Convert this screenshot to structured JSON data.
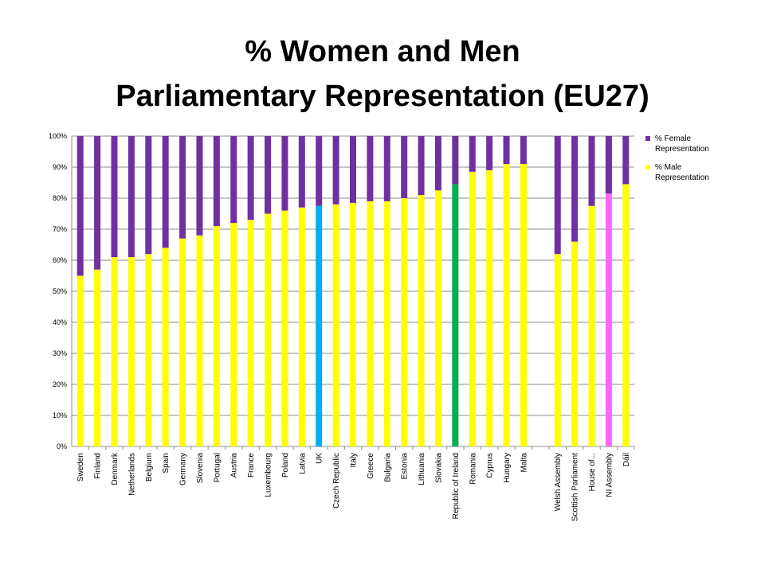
{
  "title": {
    "line1": "% Women and Men",
    "line2": "Parliamentary Representation (EU27)"
  },
  "colors": {
    "female": "#7030A0",
    "male": "#FFFF00",
    "uk": "#00B0F0",
    "ireland": "#00B050",
    "ni": "#FF66FF"
  },
  "chart_data": {
    "type": "bar",
    "stacked": true,
    "percent_stacked": true,
    "categories": [
      "Sweden",
      "Finland",
      "Denmark",
      "Netherlands",
      "Belgium",
      "Spain",
      "Germany",
      "Slovenia",
      "Portugal",
      "Austria",
      "France",
      "Luxembourg",
      "Poland",
      "Latvia",
      "UK",
      "Czech Republic",
      "Italy",
      "Greece",
      "Bulgaria",
      "Estonia",
      "Lithuania",
      "Slovakia",
      "Republic of Ireland",
      "Romania",
      "Cyprus",
      "Hungary",
      "Malta",
      "",
      "Welsh Assembly",
      "Scottish Parliament",
      "House of...",
      "NI Assembly",
      "Dáil"
    ],
    "series": [
      {
        "name": "% Female Representation",
        "values": [
          45,
          43,
          39,
          39,
          38,
          36,
          33,
          32,
          29,
          28,
          27,
          25,
          24,
          23,
          22.5,
          22,
          21.5,
          21,
          21,
          20,
          19,
          17.5,
          15.5,
          11.5,
          11,
          9,
          9,
          null,
          38,
          34,
          22.5,
          18.5,
          15.5
        ]
      },
      {
        "name": "% Male Representation",
        "values": [
          55,
          57,
          61,
          61,
          62,
          64,
          67,
          68,
          71,
          72,
          73,
          75,
          76,
          77,
          77.5,
          78,
          78.5,
          79,
          79,
          80,
          81,
          82.5,
          84.5,
          88.5,
          89,
          91,
          91,
          null,
          62,
          66,
          77.5,
          81.5,
          84.5
        ]
      }
    ],
    "highlights": {
      "UK": "uk",
      "Republic of Ireland": "ireland",
      "NI Assembly": "ni"
    },
    "yticks": [
      "0%",
      "10%",
      "20%",
      "30%",
      "40%",
      "50%",
      "60%",
      "70%",
      "80%",
      "90%",
      "100%"
    ],
    "ylim": [
      0,
      100
    ],
    "grid": true,
    "legend_position": "right"
  }
}
